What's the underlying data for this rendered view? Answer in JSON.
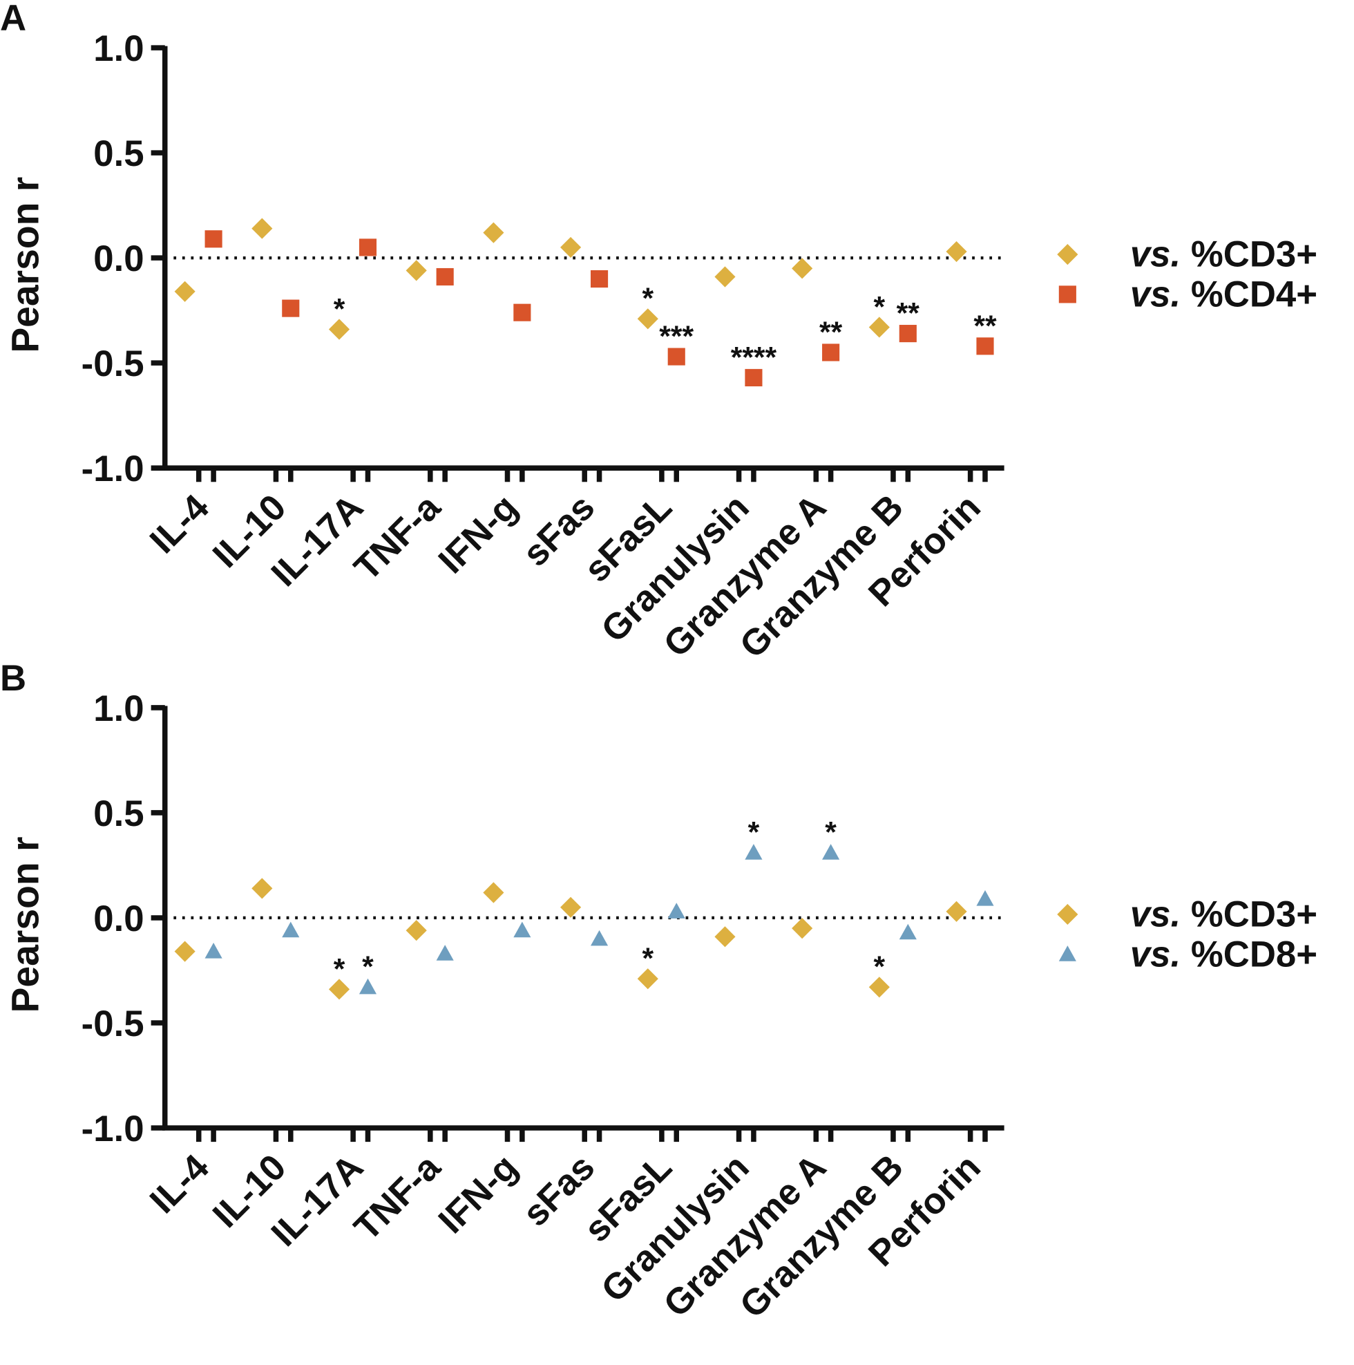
{
  "chart_data": [
    {
      "type": "scatter",
      "panel": "A",
      "ylabel": "Pearson r",
      "ylim": [
        -1.0,
        1.0
      ],
      "yticks": [
        "1.0",
        "0.5",
        "0.0",
        "-0.5",
        "-1.0"
      ],
      "categories": [
        "IL-4",
        "IL-10",
        "IL-17A",
        "TNF-a",
        "IFN-g",
        "sFas",
        "sFasL",
        "Granulysin",
        "Granzyme A",
        "Granzyme B",
        "Perforin"
      ],
      "reference_line": 0,
      "legend_position": "right",
      "series": [
        {
          "name_prefix": "vs.",
          "name": " %CD3+",
          "marker": "diamond",
          "color": "#DDB040",
          "values": [
            -0.16,
            0.14,
            -0.34,
            -0.06,
            0.12,
            0.05,
            -0.29,
            -0.09,
            -0.05,
            -0.33,
            0.03
          ],
          "significance": [
            "",
            "",
            "*",
            "",
            "",
            "",
            "*",
            "",
            "",
            "*",
            ""
          ]
        },
        {
          "name_prefix": "vs.",
          "name": " %CD4+",
          "marker": "square",
          "color": "#D9542A",
          "values": [
            0.09,
            -0.24,
            0.05,
            -0.09,
            -0.26,
            -0.1,
            -0.47,
            -0.57,
            -0.45,
            -0.36,
            -0.42
          ],
          "significance": [
            "",
            "",
            "",
            "",
            "",
            "",
            "***",
            "****",
            "**",
            "**",
            "**"
          ]
        }
      ]
    },
    {
      "type": "scatter",
      "panel": "B",
      "ylabel": "Pearson r",
      "ylim": [
        -1.0,
        1.0
      ],
      "yticks": [
        "1.0",
        "0.5",
        "0.0",
        "-0.5",
        "-1.0"
      ],
      "categories": [
        "IL-4",
        "IL-10",
        "IL-17A",
        "TNF-a",
        "IFN-g",
        "sFas",
        "sFasL",
        "Granulysin",
        "Granzyme A",
        "Granzyme B",
        "Perforin"
      ],
      "reference_line": 0,
      "legend_position": "right",
      "series": [
        {
          "name_prefix": "vs.",
          "name": " %CD3+",
          "marker": "diamond",
          "color": "#DDB040",
          "values": [
            -0.16,
            0.14,
            -0.34,
            -0.06,
            0.12,
            0.05,
            -0.29,
            -0.09,
            -0.05,
            -0.33,
            0.03
          ],
          "significance": [
            "",
            "",
            "*",
            "",
            "",
            "",
            "*",
            "",
            "",
            "*",
            ""
          ]
        },
        {
          "name_prefix": "vs.",
          "name": " %CD8+",
          "marker": "triangle",
          "color": "#6E9EBF",
          "values": [
            -0.16,
            -0.06,
            -0.33,
            -0.17,
            -0.06,
            -0.1,
            0.03,
            0.31,
            0.31,
            -0.07,
            0.09
          ],
          "significance": [
            "",
            "",
            "*",
            "",
            "",
            "",
            "",
            "*",
            "*",
            "",
            ""
          ]
        }
      ]
    }
  ]
}
